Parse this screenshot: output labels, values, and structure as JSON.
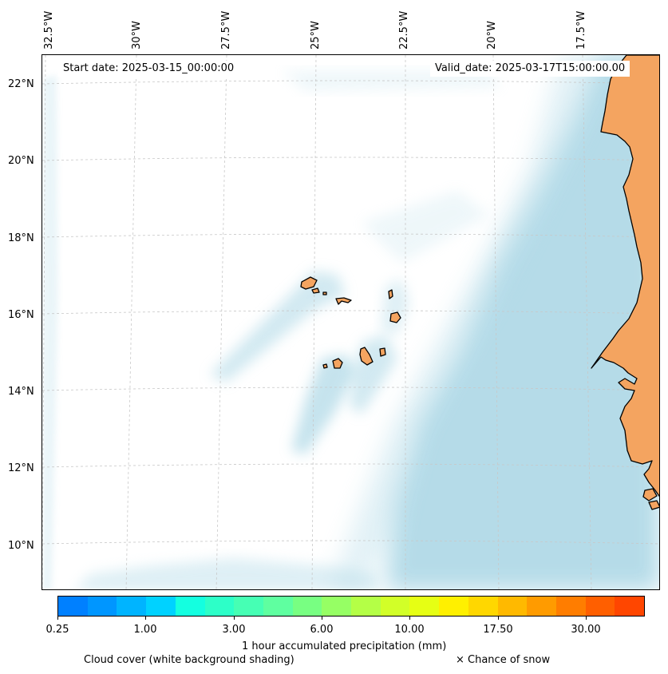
{
  "map": {
    "start_date": "Start date: 2025-03-15_00:00:00",
    "valid_date": "Valid_date: 2025-03-17T15:00:00.00",
    "longitude_labels": [
      "32.5°W",
      "30°W",
      "27.5°W",
      "25°W",
      "22.5°W",
      "20°W",
      "17.5°W"
    ],
    "latitude_labels": [
      "22°N",
      "20°N",
      "18°N",
      "16°N",
      "14°N",
      "12°N",
      "10°N"
    ],
    "colors": {
      "land": "#f4a460",
      "coastline": "#000000",
      "cloud": "#add8e6",
      "gridline": "#c8c8c8"
    }
  },
  "colorbar": {
    "colors": [
      "#0080ff",
      "#0096ff",
      "#00b4ff",
      "#00d2ff",
      "#14ffe0",
      "#2dffc8",
      "#46ffb4",
      "#5fffa0",
      "#78ff82",
      "#96ff64",
      "#b4ff46",
      "#d2ff28",
      "#e6ff14",
      "#fff000",
      "#ffd700",
      "#ffb900",
      "#ff9b00",
      "#ff7d00",
      "#ff5f00",
      "#ff4600"
    ],
    "tick_labels": [
      "0.25",
      "1.00",
      "3.00",
      "6.00",
      "10.00",
      "17.50",
      "30.00"
    ],
    "label": "1 hour accumulated precipitation (mm)"
  },
  "legend": {
    "cloud_note": "Cloud cover (white background shading)",
    "snow_note": "× Chance of snow"
  }
}
